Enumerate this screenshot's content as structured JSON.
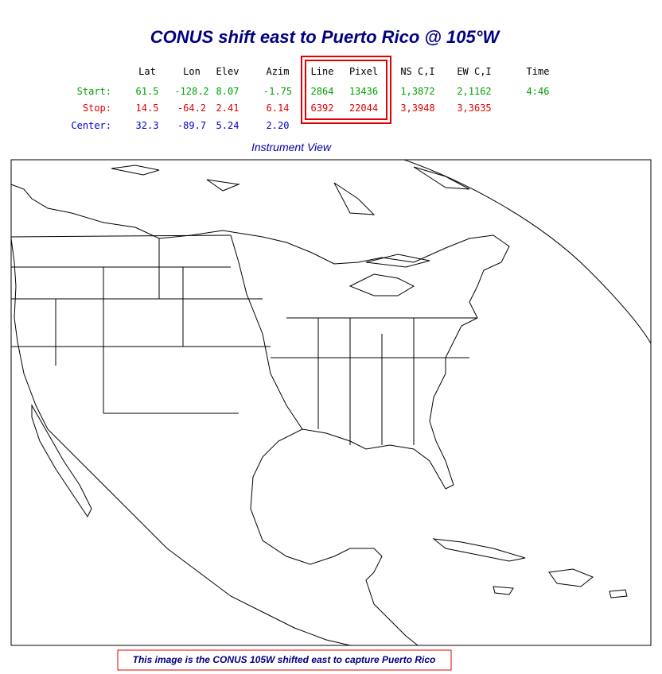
{
  "header": {
    "title": "CONUS shift east to Puerto Rico @ 105°W"
  },
  "table": {
    "columns": [
      "Lat",
      "Lon",
      "Elev",
      "Azim",
      "Line",
      "Pixel",
      "NS C,I",
      "EW C,I",
      "Time"
    ],
    "rows": [
      {
        "label": "Start:",
        "color": "#00a000",
        "cells": [
          "61.5",
          "-128.2",
          "8.07",
          "-1.75",
          "2864",
          "13436",
          "1,3872",
          "2,1162",
          "4:46"
        ]
      },
      {
        "label": "Stop:",
        "color": "#e00000",
        "cells": [
          "14.5",
          "-64.2",
          "2.41",
          "6.14",
          "6392",
          "22044",
          "3,3948",
          "3,3635"
        ]
      },
      {
        "label": "Center:",
        "color": "#0000cc",
        "cells": [
          "32.3",
          "-89.7",
          "5.24",
          "2.20"
        ]
      }
    ]
  },
  "map": {
    "title": "Instrument View"
  },
  "caption": "This image is the CONUS 105W shifted east to capture Puerto Rico"
}
